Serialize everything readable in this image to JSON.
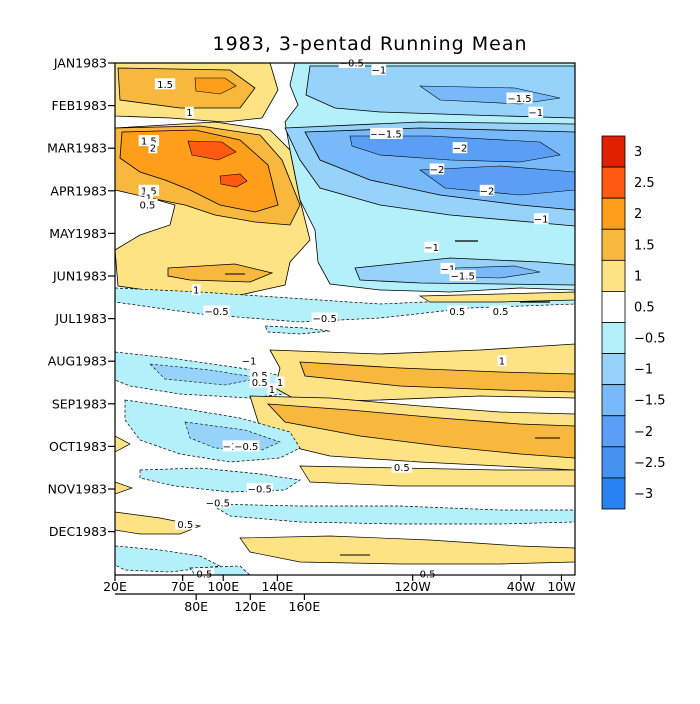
{
  "chart_data": {
    "type": "heatmap",
    "title": "1983, 3-pentad Running Mean",
    "xlabel": "",
    "ylabel": "",
    "x_ticks_major": [
      "20E",
      "70E",
      "100E",
      "140E",
      "120W",
      "40W",
      "10W"
    ],
    "x_ticks_minor": [
      "80E",
      "120E",
      "160E"
    ],
    "y_ticks": [
      "JAN1983",
      "FEB1983",
      "MAR1983",
      "APR1983",
      "MAY1983",
      "JUN1983",
      "JUL1983",
      "AUG1983",
      "SEP1983",
      "OCT1983",
      "NOV1983",
      "DEC1983"
    ],
    "x_range": [
      "20E",
      "10W"
    ],
    "colorbar": {
      "labels": [
        "3",
        "2.5",
        "2",
        "1.5",
        "1",
        "0.5",
        "-0.5",
        "-1",
        "-1.5",
        "-2",
        "-2.5",
        "-3"
      ],
      "colors": [
        "#e02000",
        "#ff5a10",
        "#ff9e1a",
        "#f8b83e",
        "#fde384",
        "#ffffff",
        "#b4f0fa",
        "#96d2fa",
        "#78b9fa",
        "#5a9ef5",
        "#4692f0",
        "#2882f0"
      ]
    },
    "contour_labels": [
      {
        "text": "1.5",
        "lon": 57,
        "time": "JAN1983 +3 pentad"
      },
      {
        "text": "1",
        "lon": 75,
        "time": "FEB1983 +1 pentad"
      },
      {
        "text": "1.5",
        "lon": 45,
        "time": "MAR1983 -1 pentad"
      },
      {
        "text": "2",
        "lon": 48,
        "time": "MAR1983"
      },
      {
        "text": "1.5",
        "lon": 45,
        "time": "APR1983"
      },
      {
        "text": "1",
        "lon": 45,
        "time": "APR1983 +1 pentad"
      },
      {
        "text": "0.5",
        "lon": 44,
        "time": "APR1983 +2 pentad"
      },
      {
        "text": "1",
        "lon": 80,
        "time": "JUN1983 +2 pentad"
      },
      {
        "text": "-0.5",
        "lon": 195,
        "time": "JAN1983"
      },
      {
        "text": "-1",
        "lon": 215,
        "time": "JAN1983 +1 pentad"
      },
      {
        "text": "-1.5",
        "lon": 319,
        "time": "FEB1983 -1 pentad"
      },
      {
        "text": "-1",
        "lon": 331,
        "time": "FEB1983 +1 pentad"
      },
      {
        "text": "-1",
        "lon": 214,
        "time": "MAR1983 -2 pentad"
      },
      {
        "text": "-1.5",
        "lon": 223,
        "time": "MAR1983 -2 pentad"
      },
      {
        "text": "-2",
        "lon": 275,
        "time": "MAR1983"
      },
      {
        "text": "-2",
        "lon": 258,
        "time": "MAR1983 +3 pentad"
      },
      {
        "text": "-2",
        "lon": 295,
        "time": "APR1983"
      },
      {
        "text": "-1",
        "lon": 335,
        "time": "MAY1983 -2 pentad"
      },
      {
        "text": "-1",
        "lon": 254,
        "time": "MAY1983 +2 pentad"
      },
      {
        "text": "-1",
        "lon": 266,
        "time": "JUN1983 -1 pentad"
      },
      {
        "text": "-1.5",
        "lon": 277,
        "time": "JUN1983"
      },
      {
        "text": "-0.5",
        "lon": 95,
        "time": "JUN1983 +5 pentad"
      },
      {
        "text": "0.5",
        "lon": 273,
        "time": "JUN1983 +5 pentad"
      },
      {
        "text": "0.5",
        "lon": 305,
        "time": "JUN1983 +5 pentad"
      },
      {
        "text": "-0.5",
        "lon": 175,
        "time": "JUL1983"
      },
      {
        "text": "0.5",
        "lon": 127,
        "time": "JUL1983 +8 pentad"
      },
      {
        "text": "1",
        "lon": 142,
        "time": "JUL1983 +9 pentad"
      },
      {
        "text": "-1",
        "lon": 119,
        "time": "AUG1983"
      },
      {
        "text": "1",
        "lon": 306,
        "time": "AUG1983"
      },
      {
        "text": "0.5",
        "lon": 127,
        "time": "AUG1983 +3 pentad"
      },
      {
        "text": "1",
        "lon": 136,
        "time": "AUG1983 +4 pentad"
      },
      {
        "text": "-1",
        "lon": 105,
        "time": "SEP1983 +6 pentad"
      },
      {
        "text": "-0.5",
        "lon": 117,
        "time": "OCT1983"
      },
      {
        "text": "0.5",
        "lon": 232,
        "time": "OCT1983 +3 pentad"
      },
      {
        "text": "-0.5",
        "lon": 127,
        "time": "OCT1983 +6 pentad"
      },
      {
        "text": "-0.5",
        "lon": 96,
        "time": "NOV1983 +2 pentad"
      },
      {
        "text": "0.5",
        "lon": 72,
        "time": "NOV1983 +5 pentad"
      },
      {
        "text": "0.5",
        "lon": 86,
        "time": "DEC1983 +6 pentad"
      },
      {
        "text": "0.5",
        "lon": 251,
        "time": "DEC1983 +6 pentad"
      }
    ]
  }
}
